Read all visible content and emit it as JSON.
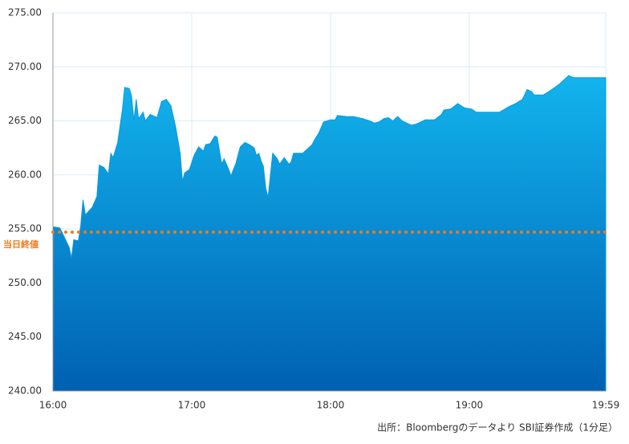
{
  "chart_data": {
    "type": "area",
    "x": [
      0,
      3,
      5,
      7,
      8,
      9,
      11,
      12,
      13,
      14,
      17,
      19,
      20,
      22,
      24,
      25,
      26,
      28,
      30,
      31,
      33,
      34,
      35,
      36,
      37,
      39,
      40,
      42,
      45,
      47,
      49,
      51,
      53,
      55,
      56,
      57,
      59,
      61,
      63,
      65,
      66,
      68,
      70,
      71,
      73,
      74,
      76,
      77,
      78,
      79,
      81,
      83,
      85,
      87,
      88,
      89,
      90,
      91,
      92,
      93,
      95,
      97,
      98,
      100,
      102,
      103,
      104,
      108,
      110,
      112,
      113,
      115,
      117,
      120,
      122,
      123,
      127,
      130,
      134,
      137,
      139,
      141,
      143,
      145,
      147,
      149,
      151,
      153,
      155,
      157,
      159,
      161,
      165,
      168,
      169,
      172,
      175,
      178,
      181,
      183,
      190,
      193,
      197,
      200,
      203,
      205,
      207,
      208,
      212,
      215,
      219,
      221,
      223,
      225,
      239
    ],
    "values": [
      255.2,
      255.1,
      254.2,
      253.3,
      252.3,
      254.0,
      253.9,
      255.3,
      257.7,
      256.3,
      257.0,
      258.0,
      260.9,
      260.7,
      260.1,
      262.0,
      261.6,
      263.0,
      266.0,
      268.1,
      268.0,
      267.3,
      265.0,
      267.0,
      265.2,
      265.8,
      265.0,
      265.6,
      265.3,
      266.8,
      267.0,
      266.4,
      264.5,
      262.0,
      259.4,
      260.2,
      260.5,
      261.8,
      262.6,
      262.2,
      262.8,
      262.9,
      263.6,
      263.5,
      261.0,
      261.5,
      260.5,
      259.9,
      260.5,
      261.0,
      262.6,
      263.0,
      262.8,
      262.5,
      261.8,
      262.0,
      261.3,
      260.8,
      258.8,
      257.9,
      262.0,
      261.5,
      261.0,
      261.6,
      261.0,
      261.2,
      262.0,
      262.0,
      262.4,
      262.8,
      263.2,
      263.9,
      264.9,
      265.1,
      265.1,
      265.5,
      265.4,
      265.4,
      265.2,
      265.0,
      264.8,
      264.9,
      265.2,
      265.3,
      265.0,
      265.4,
      265.0,
      264.8,
      264.6,
      264.7,
      264.9,
      265.1,
      265.1,
      265.6,
      266.0,
      266.1,
      266.6,
      266.2,
      266.1,
      265.8,
      265.8,
      265.8,
      266.3,
      266.6,
      267.0,
      267.9,
      267.7,
      267.4,
      267.4,
      267.8,
      268.4,
      268.8,
      269.2,
      269.0,
      269.0
    ],
    "xlim": [
      0,
      239
    ],
    "xticks": [
      {
        "value": 0,
        "label": "16:00"
      },
      {
        "value": 60,
        "label": "17:00"
      },
      {
        "value": 120,
        "label": "18:00"
      },
      {
        "value": 180,
        "label": "19:00"
      },
      {
        "value": 239,
        "label": "19:59"
      }
    ],
    "ylim": [
      240,
      275
    ],
    "yticks": [
      {
        "value": 240,
        "label": "240.00"
      },
      {
        "value": 245,
        "label": "245.00"
      },
      {
        "value": 250,
        "label": "250.00"
      },
      {
        "value": 255,
        "label": "255.00"
      },
      {
        "value": 260,
        "label": "260.00"
      },
      {
        "value": 265,
        "label": "265.00"
      },
      {
        "value": 270,
        "label": "270.00"
      },
      {
        "value": 275,
        "label": "275.00"
      }
    ],
    "grid": true,
    "color": "#0a9ae0",
    "reference_line": {
      "value": 254.7,
      "label": "当日終値",
      "color": "#f07a1e"
    },
    "source": "出所：Bloombergのデータより SBI証券作成（1分足）"
  }
}
